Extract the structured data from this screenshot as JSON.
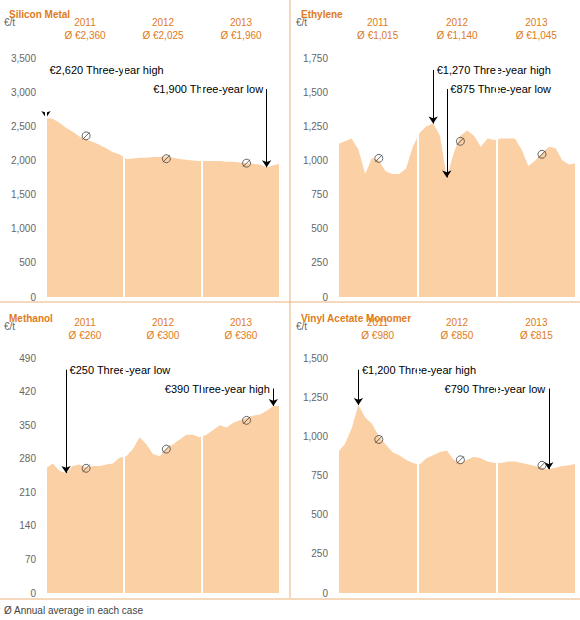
{
  "chart_data": [
    {
      "type": "area",
      "title": "Silicon Metal",
      "y_label": "€/t",
      "color": "#fcd0a5",
      "grid": false,
      "categories": [
        null,
        null,
        null,
        null,
        null,
        null,
        null,
        null,
        null,
        null,
        null,
        null,
        null,
        null,
        null,
        null,
        null,
        null,
        null,
        null,
        null,
        null,
        null,
        null,
        null,
        null,
        null,
        null,
        null,
        null,
        null,
        null,
        null,
        null,
        null,
        null
      ],
      "values": [
        2620,
        2610,
        2550,
        2480,
        2420,
        2350,
        2310,
        2270,
        2230,
        2180,
        2120,
        2090,
        2020,
        2030,
        2040,
        2040,
        2050,
        2050,
        2060,
        2040,
        2020,
        2010,
        2000,
        1990,
        1990,
        1990,
        1990,
        1980,
        1980,
        1970,
        1960,
        1950,
        1940,
        1900,
        1930,
        1950
      ],
      "ylim": [
        0,
        3500
      ],
      "yticks": [
        0,
        500,
        {
          "value": 1000,
          "label": "1,000"
        },
        {
          "value": 1500,
          "label": "1,500"
        },
        {
          "value": 2000,
          "label": "2,000"
        },
        {
          "value": 2500,
          "label": "2,500"
        },
        {
          "value": 3000,
          "label": "3,000"
        },
        {
          "value": 3500,
          "label": "3,500"
        }
      ],
      "years": [
        {
          "label": "2011",
          "average": 2360,
          "average_label": "Ø €2,360"
        },
        {
          "label": "2012",
          "average": 2025,
          "average_label": "Ø €2,025"
        },
        {
          "label": "2013",
          "average": 1960,
          "average_label": "Ø €1,960"
        }
      ],
      "annotations": [
        {
          "text": "€2,620 Three-year high",
          "value": 2620,
          "index": 0
        },
        {
          "text": "€1,900 Three-year low",
          "value": 1900,
          "index": 33
        }
      ]
    },
    {
      "type": "area",
      "title": "Ethylene",
      "y_label": "€/t",
      "color": "#fcd0a5",
      "grid": false,
      "categories": [
        null,
        null,
        null,
        null,
        null,
        null,
        null,
        null,
        null,
        null,
        null,
        null,
        null,
        null,
        null,
        null,
        null,
        null,
        null,
        null,
        null,
        null,
        null,
        null,
        null,
        null,
        null,
        null,
        null,
        null,
        null,
        null,
        null,
        null,
        null,
        null
      ],
      "values": [
        1120,
        1140,
        1160,
        1080,
        900,
        1020,
        1000,
        920,
        900,
        900,
        940,
        1100,
        1200,
        1250,
        1270,
        1180,
        875,
        1050,
        1180,
        1220,
        1180,
        1100,
        1160,
        1150,
        1160,
        1160,
        1160,
        1080,
        960,
        1000,
        1050,
        1100,
        1090,
        1000,
        970,
        980
      ],
      "ylim": [
        0,
        1750
      ],
      "yticks": [
        0,
        250,
        500,
        750,
        {
          "value": 1000,
          "label": "1,000"
        },
        {
          "value": 1250,
          "label": "1,250"
        },
        {
          "value": 1500,
          "label": "1,500"
        },
        {
          "value": 1750,
          "label": "1,750"
        }
      ],
      "years": [
        {
          "label": "2011",
          "average": 1015,
          "average_label": "Ø €1,015"
        },
        {
          "label": "2012",
          "average": 1140,
          "average_label": "Ø €1,140"
        },
        {
          "label": "2013",
          "average": 1045,
          "average_label": "Ø €1,045"
        }
      ],
      "annotations": [
        {
          "text": "€1,270 Three-year high",
          "value": 1270,
          "index": 14
        },
        {
          "text": "€875 Three-year low",
          "value": 875,
          "index": 16
        }
      ]
    },
    {
      "type": "area",
      "title": "Methanol",
      "y_label": "€/t",
      "color": "#fcd0a5",
      "grid": false,
      "categories": [
        null,
        null,
        null,
        null,
        null,
        null,
        null,
        null,
        null,
        null,
        null,
        null,
        null,
        null,
        null,
        null,
        null,
        null,
        null,
        null,
        null,
        null,
        null,
        null,
        null,
        null,
        null,
        null,
        null,
        null,
        null,
        null,
        null,
        null,
        null,
        null
      ],
      "values": [
        260,
        270,
        255,
        250,
        265,
        268,
        262,
        265,
        265,
        268,
        270,
        282,
        285,
        300,
        325,
        310,
        290,
        285,
        300,
        310,
        320,
        330,
        330,
        325,
        330,
        340,
        350,
        345,
        355,
        360,
        365,
        370,
        372,
        380,
        390,
        390
      ],
      "ylim": [
        0,
        490
      ],
      "yticks": [
        0,
        70,
        140,
        210,
        280,
        350,
        420,
        490
      ],
      "years": [
        {
          "label": "2011",
          "average": 260,
          "average_label": "Ø €260"
        },
        {
          "label": "2012",
          "average": 300,
          "average_label": "Ø €300"
        },
        {
          "label": "2013",
          "average": 360,
          "average_label": "Ø €360"
        }
      ],
      "annotations": [
        {
          "text": "€250 Three-year low",
          "value": 250,
          "index": 3
        },
        {
          "text": "€390 Three-year high",
          "value": 390,
          "index": 34
        }
      ]
    },
    {
      "type": "area",
      "title": "Vinyl Acetate Monomer",
      "y_label": "€/t",
      "color": "#fcd0a5",
      "grid": false,
      "categories": [
        null,
        null,
        null,
        null,
        null,
        null,
        null,
        null,
        null,
        null,
        null,
        null,
        null,
        null,
        null,
        null,
        null,
        null,
        null,
        null,
        null,
        null,
        null,
        null,
        null,
        null,
        null,
        null,
        null,
        null,
        null,
        null,
        null,
        null,
        null,
        null
      ],
      "values": [
        900,
        950,
        1050,
        1200,
        1120,
        1080,
        1000,
        950,
        900,
        880,
        850,
        830,
        820,
        860,
        880,
        900,
        910,
        850,
        830,
        850,
        870,
        860,
        840,
        830,
        830,
        840,
        840,
        830,
        820,
        810,
        800,
        790,
        800,
        810,
        815,
        825
      ],
      "ylim": [
        0,
        1500
      ],
      "yticks": [
        0,
        250,
        500,
        750,
        {
          "value": 1000,
          "label": "1,000"
        },
        {
          "value": 1250,
          "label": "1,250"
        },
        {
          "value": 1500,
          "label": "1,500"
        }
      ],
      "years": [
        {
          "label": "2011",
          "average": 980,
          "average_label": "Ø €980"
        },
        {
          "label": "2012",
          "average": 850,
          "average_label": "Ø €850"
        },
        {
          "label": "2013",
          "average": 815,
          "average_label": "Ø €815"
        }
      ],
      "annotations": [
        {
          "text": "€1,200 Three-year high",
          "value": 1200,
          "index": 3
        },
        {
          "text": "€790 Three-year low",
          "value": 790,
          "index": 31
        }
      ]
    }
  ],
  "note": "Ø Annual average in each case"
}
